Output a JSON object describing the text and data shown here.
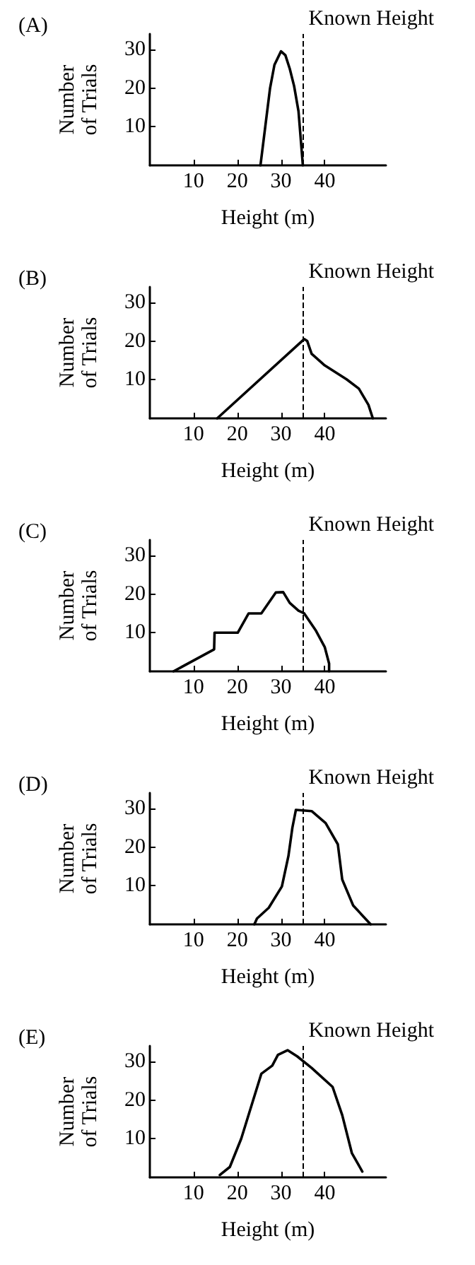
{
  "chart_data": [
    {
      "type": "line",
      "title": "(A)",
      "xlabel": "Height (m)",
      "ylabel": "Number of Trials",
      "xlim": [
        0,
        54
      ],
      "ylim": [
        0,
        34
      ],
      "xticks": [
        10,
        20,
        30,
        40
      ],
      "yticks": [
        10,
        20,
        30
      ],
      "grid": false,
      "marker": "none",
      "line_style": "solid",
      "x": [
        25.3,
        26.4,
        27.5,
        28.5,
        30,
        31,
        32,
        33,
        34,
        35
      ],
      "series": [
        {
          "color": "#000000",
          "values": [
            0,
            10,
            20,
            26,
            29.5,
            28.5,
            25,
            20.5,
            14,
            0
          ]
        }
      ],
      "ref_lines": [
        {
          "axis": "x",
          "value": 35,
          "label": "Known Height",
          "color": "#000000",
          "line_style": "dashed"
        }
      ]
    },
    {
      "type": "line",
      "title": "(B)",
      "xlabel": "Height (m)",
      "ylabel": "Number of Trials",
      "xlim": [
        0,
        54
      ],
      "ylim": [
        0,
        34
      ],
      "xticks": [
        10,
        20,
        30,
        40
      ],
      "yticks": [
        10,
        20,
        30
      ],
      "grid": false,
      "marker": "none",
      "line_style": "solid",
      "x": [
        15.4,
        35.3,
        36,
        37,
        40,
        45,
        47.8,
        50,
        51
      ],
      "series": [
        {
          "color": "#000000",
          "values": [
            0,
            20.5,
            20,
            16.7,
            13.7,
            10.1,
            7.7,
            3.5,
            0
          ]
        }
      ],
      "ref_lines": [
        {
          "axis": "x",
          "value": 35,
          "label": "Known Height",
          "color": "#000000",
          "line_style": "dashed"
        }
      ]
    },
    {
      "type": "line",
      "title": "(C)",
      "xlabel": "Height (m)",
      "ylabel": "Number of Trials",
      "xlim": [
        0,
        54
      ],
      "ylim": [
        0,
        34
      ],
      "xticks": [
        10,
        20,
        30,
        40
      ],
      "yticks": [
        10,
        20,
        30
      ],
      "grid": false,
      "marker": "none",
      "line_style": "solid",
      "x": [
        5.4,
        14.7,
        14.8,
        20.1,
        22.6,
        25.5,
        28.8,
        30.5,
        32,
        34,
        35.3,
        38,
        40,
        41,
        41
      ],
      "series": [
        {
          "color": "#000000",
          "values": [
            0,
            5.7,
            10,
            10,
            15,
            15,
            20.4,
            20.5,
            17.7,
            15.7,
            15,
            10.5,
            6.3,
            2,
            0
          ]
        }
      ],
      "ref_lines": [
        {
          "axis": "x",
          "value": 35,
          "label": "Known Height",
          "color": "#000000",
          "line_style": "dashed"
        }
      ]
    },
    {
      "type": "line",
      "title": "(D)",
      "xlabel": "Height (m)",
      "ylabel": "Number of Trials",
      "xlim": [
        0,
        54
      ],
      "ylim": [
        0,
        34
      ],
      "xticks": [
        10,
        20,
        30,
        40
      ],
      "yticks": [
        10,
        20,
        30
      ],
      "grid": false,
      "marker": "none",
      "line_style": "solid",
      "x": [
        23.9,
        24.5,
        27.2,
        30.2,
        31.7,
        32.6,
        33.4,
        37,
        40.2,
        43,
        44,
        46.5,
        50.5
      ],
      "series": [
        {
          "color": "#000000",
          "values": [
            0,
            1.5,
            4.3,
            9.8,
            17.7,
            25,
            29.6,
            29.3,
            26.2,
            20.7,
            11.6,
            4.9,
            0
          ]
        }
      ],
      "ref_lines": [
        {
          "axis": "x",
          "value": 35,
          "label": "Known Height",
          "color": "#000000",
          "line_style": "dashed"
        }
      ]
    },
    {
      "type": "line",
      "title": "(E)",
      "xlabel": "Height (m)",
      "ylabel": "Number of Trials",
      "xlim": [
        0,
        54
      ],
      "ylim": [
        0,
        34
      ],
      "xticks": [
        10,
        20,
        30,
        40
      ],
      "yticks": [
        10,
        20,
        30
      ],
      "grid": false,
      "marker": "none",
      "line_style": "solid",
      "x": [
        16,
        18.3,
        20.9,
        25.5,
        28,
        29.3,
        31.5,
        33.7,
        37,
        41.8,
        44,
        46.2,
        48.6
      ],
      "series": [
        {
          "color": "#000000",
          "values": [
            0.6,
            2.7,
            10,
            26.8,
            28.9,
            31.7,
            32.9,
            31.3,
            28.3,
            23.4,
            16.1,
            6.3,
            1.5
          ]
        }
      ],
      "ref_lines": [
        {
          "axis": "x",
          "value": 35,
          "label": "Known Height",
          "color": "#000000",
          "line_style": "dashed"
        }
      ]
    }
  ]
}
